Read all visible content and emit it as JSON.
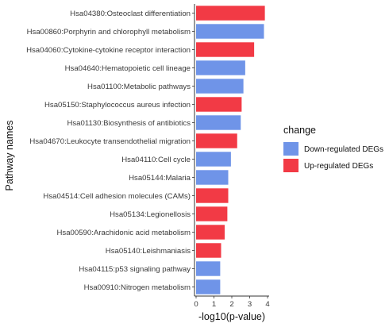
{
  "chart_data": {
    "type": "bar",
    "orientation": "horizontal",
    "categories": [
      "Hsa04380:Osteoclast differentiation",
      "Hsa00860:Porphyrin and chlorophyll metabolism",
      "Hsa04060:Cytokine-cytokine receptor interaction",
      "Hsa04640:Hematopoietic cell lineage",
      "Hsa01100:Metabolic pathways",
      "Hsa05150:Staphylococcus aureus infection",
      "Hsa01130:Biosynthesis of antibiotics",
      "Hsa04670:Leukocyte transendothelial migration",
      "Hsa04110:Cell cycle",
      "Hsa05144:Malaria",
      "Hsa04514:Cell adhesion molecules (CAMs)",
      "Hsa05134:Legionellosis",
      "Hsa00590:Arachidonic acid metabolism",
      "Hsa05140:Leishmaniasis",
      "Hsa04115:p53 signaling pathway",
      "Hsa00910:Nitrogen metabolism"
    ],
    "values": [
      3.85,
      3.8,
      3.25,
      2.75,
      2.65,
      2.55,
      2.5,
      2.3,
      1.95,
      1.8,
      1.8,
      1.75,
      1.6,
      1.4,
      1.35,
      1.35
    ],
    "groups": [
      "Up-regulated DEGs",
      "Down-regulated DEGs",
      "Up-regulated DEGs",
      "Down-regulated DEGs",
      "Down-regulated DEGs",
      "Up-regulated DEGs",
      "Down-regulated DEGs",
      "Up-regulated DEGs",
      "Down-regulated DEGs",
      "Down-regulated DEGs",
      "Up-regulated DEGs",
      "Up-regulated DEGs",
      "Up-regulated DEGs",
      "Up-regulated DEGs",
      "Down-regulated DEGs",
      "Down-regulated DEGs"
    ],
    "xlabel": "-log10(p-value)",
    "ylabel": "Pathway names",
    "xlim": [
      0,
      4
    ],
    "xticks": [
      "0",
      "1",
      "2",
      "3",
      "4"
    ],
    "grid": false,
    "legend": {
      "title": "change",
      "placement": "right",
      "entries": [
        {
          "label": "Down-regulated DEGs",
          "color": "#6f94e8"
        },
        {
          "label": "Up-regulated DEGs",
          "color": "#f23a45"
        }
      ]
    }
  }
}
